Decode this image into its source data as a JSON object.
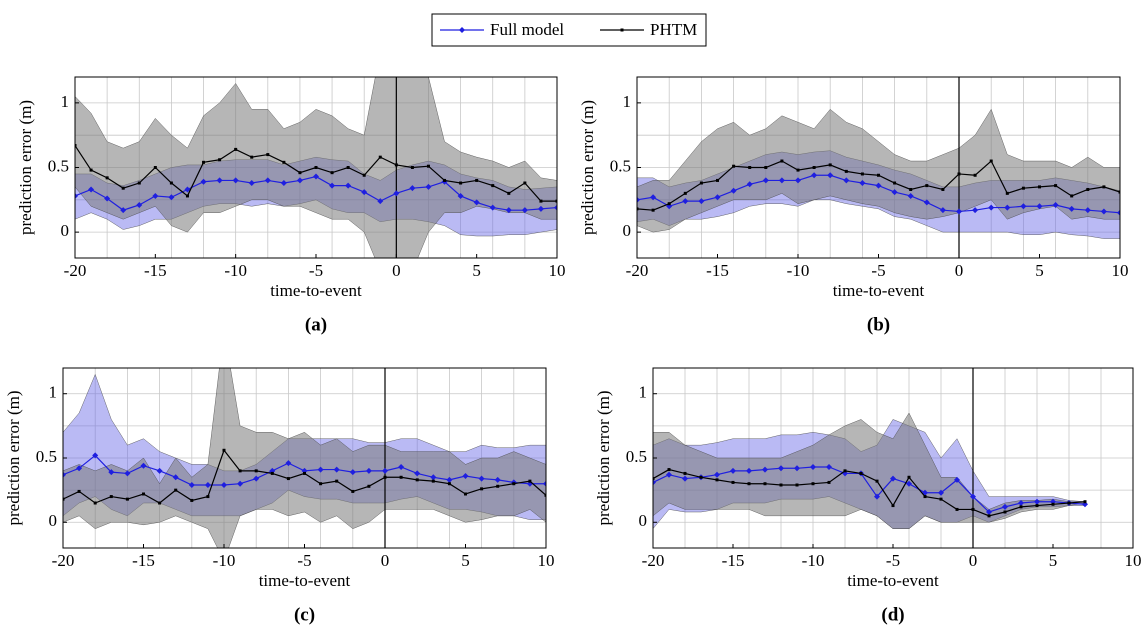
{
  "legend": [
    {
      "name": "Full model",
      "color": "#1f1fe0",
      "band_color": "#6666e6"
    },
    {
      "name": "PHTM",
      "color": "#000000",
      "band_color": "#7a7a7a"
    }
  ],
  "chart_data": [
    {
      "type": "line",
      "label": "(a)",
      "xlabel": "time-to-event",
      "ylabel": "prediction error (m)",
      "x": [
        -20,
        -19,
        -18,
        -17,
        -16,
        -15,
        -14,
        -13,
        -12,
        -11,
        -10,
        -9,
        -8,
        -7,
        -6,
        -5,
        -4,
        -3,
        -2,
        -1,
        0,
        1,
        2,
        3,
        4,
        5,
        6,
        7,
        8,
        9,
        10
      ],
      "xlim": [
        -20,
        10
      ],
      "ylim": [
        -0.2,
        1.2
      ],
      "xticks": [
        -20,
        -15,
        -10,
        -5,
        0,
        5,
        10
      ],
      "yticks": [
        0,
        0.5,
        1
      ],
      "xgrid": [
        -20,
        -18,
        -16,
        -14,
        -12,
        -10,
        -8,
        -6,
        -4,
        -2,
        0,
        2,
        4,
        6,
        8,
        10
      ],
      "ygrid": [
        0,
        0.25,
        0.5,
        0.75,
        1
      ],
      "vline": 0,
      "series": [
        {
          "values": [
            0.28,
            0.33,
            0.26,
            0.17,
            0.21,
            0.28,
            0.27,
            0.33,
            0.39,
            0.4,
            0.4,
            0.38,
            0.4,
            0.38,
            0.4,
            0.43,
            0.36,
            0.36,
            0.31,
            0.24,
            0.3,
            0.34,
            0.35,
            0.39,
            0.28,
            0.23,
            0.19,
            0.17,
            0.17,
            0.18,
            0.19
          ],
          "upper": [
            0.45,
            0.45,
            0.38,
            0.36,
            0.4,
            0.45,
            0.5,
            0.52,
            0.52,
            0.55,
            0.56,
            0.56,
            0.56,
            0.52,
            0.55,
            0.58,
            0.56,
            0.55,
            0.45,
            0.4,
            0.48,
            0.52,
            0.55,
            0.52,
            0.45,
            0.42,
            0.4,
            0.35,
            0.33,
            0.34,
            0.35
          ],
          "lower": [
            0.1,
            0.15,
            0.1,
            0.02,
            0.05,
            0.1,
            0.1,
            0.15,
            0.2,
            0.22,
            0.22,
            0.2,
            0.22,
            0.2,
            0.22,
            0.25,
            0.18,
            0.15,
            0.15,
            0.08,
            0.1,
            0.1,
            0.08,
            0.05,
            -0.02,
            -0.03,
            -0.03,
            -0.02,
            -0.02,
            0.0,
            0.02
          ]
        },
        {
          "values": [
            0.67,
            0.48,
            0.42,
            0.34,
            0.38,
            0.5,
            0.38,
            0.28,
            0.54,
            0.56,
            0.64,
            0.58,
            0.6,
            0.54,
            0.46,
            0.5,
            0.46,
            0.5,
            0.44,
            0.58,
            0.52,
            0.5,
            0.51,
            0.4,
            0.38,
            0.4,
            0.36,
            0.3,
            0.38,
            0.24,
            0.24
          ],
          "upper": [
            1.05,
            0.92,
            0.7,
            0.65,
            0.7,
            0.88,
            0.75,
            0.65,
            0.9,
            1.0,
            1.15,
            0.95,
            0.95,
            0.8,
            0.85,
            0.95,
            0.9,
            0.8,
            0.75,
            1.4,
            1.4,
            1.4,
            1.2,
            0.7,
            0.62,
            0.58,
            0.55,
            0.5,
            0.55,
            0.42,
            0.4
          ],
          "lower": [
            0.35,
            0.2,
            0.15,
            0.1,
            0.15,
            0.2,
            0.05,
            0.0,
            0.15,
            0.15,
            0.2,
            0.25,
            0.25,
            0.2,
            0.2,
            0.15,
            0.1,
            0.1,
            0.0,
            -0.3,
            -0.3,
            -0.3,
            0.0,
            0.15,
            0.15,
            0.2,
            0.18,
            0.15,
            0.15,
            0.1,
            0.1
          ]
        }
      ]
    },
    {
      "type": "line",
      "label": "(b)",
      "xlabel": "time-to-event",
      "ylabel": "prediction error (m)",
      "x": [
        -20,
        -19,
        -18,
        -17,
        -16,
        -15,
        -14,
        -13,
        -12,
        -11,
        -10,
        -9,
        -8,
        -7,
        -6,
        -5,
        -4,
        -3,
        -2,
        -1,
        0,
        1,
        2,
        3,
        4,
        5,
        6,
        7,
        8,
        9,
        10
      ],
      "xlim": [
        -20,
        10
      ],
      "ylim": [
        -0.2,
        1.2
      ],
      "xticks": [
        -20,
        -15,
        -10,
        -5,
        0,
        5,
        10
      ],
      "yticks": [
        0,
        0.5,
        1
      ],
      "xgrid": [
        -20,
        -18,
        -16,
        -14,
        -12,
        -10,
        -8,
        -6,
        -4,
        -2,
        0,
        2,
        4,
        6,
        8,
        10
      ],
      "ygrid": [
        0,
        0.25,
        0.5,
        0.75,
        1
      ],
      "vline": 0,
      "series": [
        {
          "values": [
            0.25,
            0.27,
            0.2,
            0.24,
            0.24,
            0.27,
            0.32,
            0.37,
            0.4,
            0.4,
            0.4,
            0.44,
            0.44,
            0.4,
            0.38,
            0.36,
            0.31,
            0.28,
            0.23,
            0.17,
            0.16,
            0.17,
            0.19,
            0.19,
            0.2,
            0.2,
            0.21,
            0.18,
            0.17,
            0.16,
            0.15
          ],
          "upper": [
            0.42,
            0.42,
            0.35,
            0.38,
            0.4,
            0.45,
            0.5,
            0.55,
            0.6,
            0.62,
            0.6,
            0.62,
            0.63,
            0.58,
            0.55,
            0.52,
            0.48,
            0.45,
            0.4,
            0.35,
            0.35,
            0.38,
            0.4,
            0.4,
            0.4,
            0.4,
            0.42,
            0.4,
            0.38,
            0.35,
            0.32
          ],
          "lower": [
            0.08,
            0.1,
            0.05,
            0.1,
            0.1,
            0.12,
            0.15,
            0.2,
            0.22,
            0.22,
            0.2,
            0.25,
            0.25,
            0.22,
            0.2,
            0.18,
            0.12,
            0.1,
            0.05,
            0.0,
            0.0,
            0.0,
            0.0,
            0.0,
            -0.02,
            -0.02,
            0.0,
            -0.02,
            -0.03,
            -0.05,
            -0.05
          ]
        },
        {
          "values": [
            0.18,
            0.17,
            0.22,
            0.3,
            0.38,
            0.4,
            0.51,
            0.5,
            0.5,
            0.55,
            0.48,
            0.5,
            0.52,
            0.47,
            0.45,
            0.44,
            0.38,
            0.33,
            0.36,
            0.33,
            0.45,
            0.44,
            0.55,
            0.3,
            0.34,
            0.35,
            0.36,
            0.28,
            0.33,
            0.35,
            0.31
          ],
          "upper": [
            0.35,
            0.4,
            0.4,
            0.55,
            0.7,
            0.8,
            0.85,
            0.75,
            0.8,
            0.9,
            0.85,
            0.8,
            0.95,
            0.85,
            0.8,
            0.7,
            0.6,
            0.55,
            0.55,
            0.6,
            0.65,
            0.75,
            0.95,
            0.6,
            0.55,
            0.55,
            0.55,
            0.5,
            0.58,
            0.5,
            0.5
          ],
          "lower": [
            0.05,
            0.0,
            0.02,
            0.1,
            0.15,
            0.2,
            0.25,
            0.25,
            0.25,
            0.3,
            0.22,
            0.25,
            0.28,
            0.25,
            0.22,
            0.2,
            0.15,
            0.12,
            0.1,
            0.12,
            0.15,
            0.2,
            0.25,
            0.1,
            0.15,
            0.18,
            0.2,
            0.1,
            0.12,
            0.1,
            0.1
          ]
        }
      ]
    },
    {
      "type": "line",
      "label": "(c)",
      "xlabel": "time-to-event",
      "ylabel": "prediction error (m)",
      "x": [
        -20,
        -19,
        -18,
        -17,
        -16,
        -15,
        -14,
        -13,
        -12,
        -11,
        -10,
        -9,
        -8,
        -7,
        -6,
        -5,
        -4,
        -3,
        -2,
        -1,
        0,
        1,
        2,
        3,
        4,
        5,
        6,
        7,
        8,
        9,
        10
      ],
      "xlim": [
        -20,
        10
      ],
      "ylim": [
        -0.2,
        1.2
      ],
      "xticks": [
        -20,
        -15,
        -10,
        -5,
        0,
        5,
        10
      ],
      "yticks": [
        0,
        0.5,
        1
      ],
      "xgrid": [
        -20,
        -18,
        -16,
        -14,
        -12,
        -10,
        -8,
        -6,
        -4,
        -2,
        0,
        2,
        4,
        6,
        8,
        10
      ],
      "ygrid": [
        0,
        0.25,
        0.5,
        0.75,
        1
      ],
      "vline": 0,
      "series": [
        {
          "values": [
            0.37,
            0.42,
            0.52,
            0.39,
            0.38,
            0.44,
            0.4,
            0.35,
            0.29,
            0.29,
            0.29,
            0.3,
            0.34,
            0.4,
            0.46,
            0.4,
            0.41,
            0.41,
            0.39,
            0.4,
            0.4,
            0.43,
            0.38,
            0.35,
            0.33,
            0.36,
            0.34,
            0.33,
            0.31,
            0.3,
            0.3
          ],
          "upper": [
            0.7,
            0.85,
            1.15,
            0.8,
            0.6,
            0.65,
            0.55,
            0.5,
            0.45,
            0.45,
            0.4,
            0.4,
            0.45,
            0.55,
            0.65,
            0.65,
            0.65,
            0.65,
            0.65,
            0.62,
            0.62,
            0.65,
            0.65,
            0.6,
            0.55,
            0.55,
            0.6,
            0.58,
            0.58,
            0.6,
            0.6
          ],
          "lower": [
            0.05,
            0.15,
            0.2,
            0.1,
            0.05,
            0.15,
            0.15,
            0.1,
            0.05,
            0.05,
            0.05,
            0.05,
            0.1,
            0.15,
            0.25,
            0.2,
            0.18,
            0.18,
            0.15,
            0.15,
            0.15,
            0.18,
            0.2,
            0.15,
            0.1,
            0.1,
            0.08,
            0.05,
            0.05,
            0.02,
            0.02
          ]
        },
        {
          "values": [
            0.18,
            0.24,
            0.15,
            0.2,
            0.18,
            0.22,
            0.15,
            0.25,
            0.17,
            0.2,
            0.56,
            0.4,
            0.4,
            0.38,
            0.34,
            0.38,
            0.3,
            0.32,
            0.24,
            0.28,
            0.35,
            0.35,
            0.33,
            0.32,
            0.3,
            0.22,
            0.26,
            0.28,
            0.3,
            0.32,
            0.21
          ],
          "upper": [
            0.4,
            0.45,
            0.4,
            0.45,
            0.4,
            0.5,
            0.3,
            0.5,
            0.35,
            0.45,
            1.5,
            0.75,
            0.7,
            0.7,
            0.65,
            0.7,
            0.6,
            0.65,
            0.55,
            0.6,
            0.6,
            0.55,
            0.55,
            0.55,
            0.55,
            0.45,
            0.5,
            0.5,
            0.55,
            0.5,
            0.45
          ],
          "lower": [
            0.0,
            0.05,
            -0.05,
            0.0,
            0.0,
            -0.02,
            0.0,
            0.05,
            0.0,
            -0.05,
            -0.3,
            0.05,
            0.1,
            0.1,
            0.05,
            0.08,
            0.0,
            0.05,
            -0.05,
            0.0,
            0.1,
            0.1,
            0.1,
            0.1,
            0.05,
            0.0,
            0.02,
            0.05,
            0.05,
            0.1,
            0.0
          ]
        }
      ]
    },
    {
      "type": "line",
      "label": "(d)",
      "xlabel": "time-to-event",
      "ylabel": "prediction error (m)",
      "x": [
        -20,
        -19,
        -18,
        -17,
        -16,
        -15,
        -14,
        -13,
        -12,
        -11,
        -10,
        -9,
        -8,
        -7,
        -6,
        -5,
        -4,
        -3,
        -2,
        -1,
        0,
        1,
        2,
        3,
        4,
        5,
        6,
        7
      ],
      "xlim": [
        -20,
        10
      ],
      "ylim": [
        -0.2,
        1.2
      ],
      "xticks": [
        -20,
        -15,
        -10,
        -5,
        0,
        5,
        10
      ],
      "yticks": [
        0,
        0.5,
        1
      ],
      "xgrid": [
        -20,
        -18,
        -16,
        -14,
        -12,
        -10,
        -8,
        -6,
        -4,
        -2,
        0,
        2,
        4,
        6,
        8,
        10
      ],
      "ygrid": [
        0,
        0.25,
        0.5,
        0.75,
        1
      ],
      "vline": 0,
      "series": [
        {
          "values": [
            0.31,
            0.37,
            0.34,
            0.35,
            0.37,
            0.4,
            0.4,
            0.41,
            0.42,
            0.42,
            0.43,
            0.43,
            0.38,
            0.38,
            0.2,
            0.34,
            0.3,
            0.23,
            0.23,
            0.33,
            0.2,
            0.08,
            0.12,
            0.15,
            0.16,
            0.16,
            0.15,
            0.14
          ],
          "upper": [
            0.6,
            0.65,
            0.6,
            0.6,
            0.62,
            0.65,
            0.65,
            0.65,
            0.68,
            0.68,
            0.7,
            0.68,
            0.65,
            0.55,
            0.6,
            0.8,
            0.75,
            0.7,
            0.5,
            0.65,
            0.4,
            0.2,
            0.2,
            0.2,
            0.2,
            0.2,
            0.17,
            0.16
          ],
          "lower": [
            -0.05,
            0.1,
            0.08,
            0.08,
            0.1,
            0.15,
            0.15,
            0.15,
            0.18,
            0.18,
            0.18,
            0.2,
            0.15,
            0.1,
            0.05,
            -0.05,
            -0.05,
            0.05,
            0.0,
            0.0,
            0.05,
            0.0,
            0.05,
            0.1,
            0.12,
            0.12,
            0.13,
            0.13
          ]
        },
        {
          "values": [
            0.34,
            0.41,
            0.38,
            0.35,
            0.33,
            0.31,
            0.3,
            0.3,
            0.29,
            0.29,
            0.3,
            0.31,
            0.4,
            0.38,
            0.32,
            0.13,
            0.35,
            0.2,
            0.18,
            0.1,
            0.1,
            0.05,
            0.08,
            0.12,
            0.13,
            0.14,
            0.15,
            0.16
          ],
          "upper": [
            0.7,
            0.7,
            0.6,
            0.55,
            0.5,
            0.5,
            0.5,
            0.5,
            0.5,
            0.55,
            0.6,
            0.68,
            0.75,
            0.8,
            0.7,
            0.65,
            0.85,
            0.6,
            0.35,
            0.35,
            0.2,
            0.1,
            0.15,
            0.17,
            0.17,
            0.18,
            0.16,
            0.16
          ],
          "lower": [
            0.05,
            0.15,
            0.1,
            0.1,
            0.1,
            0.1,
            0.1,
            0.05,
            0.05,
            0.05,
            0.05,
            0.05,
            0.05,
            0.1,
            0.05,
            -0.05,
            -0.05,
            0.05,
            0.0,
            0.0,
            0.0,
            0.0,
            0.03,
            0.08,
            0.1,
            0.1,
            0.13,
            0.15
          ]
        }
      ]
    }
  ]
}
